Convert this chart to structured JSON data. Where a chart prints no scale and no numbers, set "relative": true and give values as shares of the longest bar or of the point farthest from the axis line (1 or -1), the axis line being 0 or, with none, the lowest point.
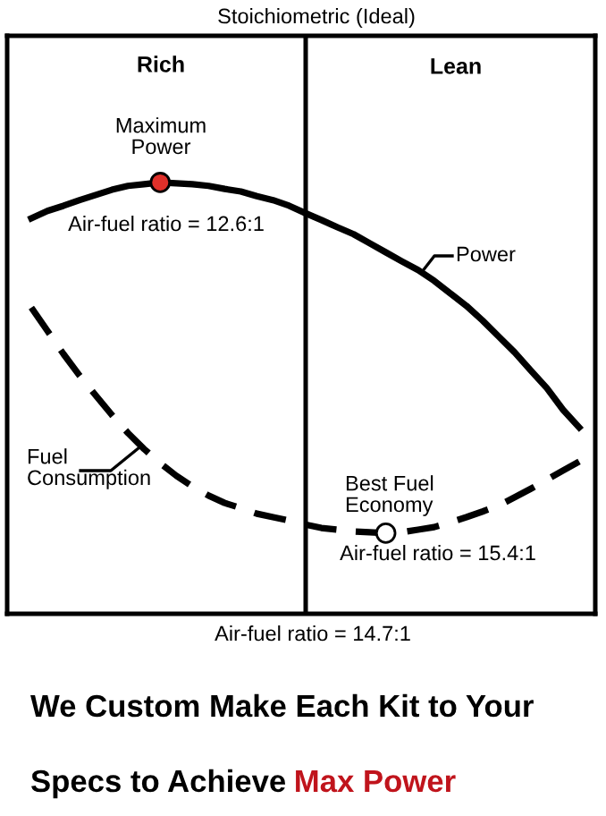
{
  "chart_data": {
    "type": "line",
    "relative": true,
    "categories": [
      null,
      null,
      null,
      null,
      null,
      null,
      null,
      null,
      null,
      null,
      null,
      null,
      null,
      null,
      null,
      null,
      null,
      null,
      null,
      null,
      null,
      null,
      null,
      null,
      null,
      null,
      null,
      null,
      null,
      null,
      null,
      null,
      null,
      null,
      null
    ],
    "series": [
      {
        "name": "Power",
        "color": "#000000",
        "line_style": "solid",
        "values": [
          0.917,
          0.934,
          0.946,
          0.959,
          0.971,
          0.983,
          0.992,
          0.996,
          1.0,
          0.998,
          0.996,
          0.992,
          0.985,
          0.979,
          0.968,
          0.959,
          0.946,
          0.929,
          0.913,
          0.896,
          0.88,
          0.859,
          0.838,
          0.817,
          0.797,
          0.772,
          0.743,
          0.714,
          0.68,
          0.643,
          0.606,
          0.564,
          0.523,
          0.473,
          0.432
        ]
      },
      {
        "name": "Fuel Consumption",
        "color": "#000000",
        "line_style": "dashed",
        "values": [
          0.71,
          0.656,
          0.602,
          0.552,
          0.506,
          0.461,
          0.419,
          0.382,
          0.349,
          0.32,
          0.295,
          0.274,
          0.257,
          0.245,
          0.232,
          0.224,
          0.216,
          0.207,
          0.199,
          0.195,
          0.191,
          0.189,
          0.187,
          0.189,
          0.195,
          0.201,
          0.212,
          0.224,
          0.237,
          0.251,
          0.27,
          0.29,
          0.311,
          0.332,
          0.353
        ]
      },
      {
        "type": "line",
        "marker": "circle",
        "color": "#e0302a",
        "values": [
          null,
          null,
          null,
          null,
          null,
          null,
          null,
          null,
          1.0,
          null,
          null,
          null,
          null,
          null,
          null,
          null,
          null,
          null,
          null,
          null,
          null,
          null,
          null,
          null,
          null,
          null,
          null,
          null,
          null,
          null,
          null,
          null,
          null,
          null,
          null
        ]
      },
      {
        "type": "line",
        "marker": "circle",
        "color": "#ffffff",
        "values": [
          null,
          null,
          null,
          null,
          null,
          null,
          null,
          null,
          null,
          null,
          null,
          null,
          null,
          null,
          null,
          null,
          null,
          null,
          null,
          null,
          null,
          null,
          0.187,
          null,
          null,
          null,
          null,
          null,
          null,
          null,
          null,
          null,
          null,
          null,
          null
        ]
      }
    ],
    "annotations": [
      "Stoichiometric (Ideal)",
      "Rich",
      "Lean",
      "Maximum\nPower",
      "Air-fuel ratio = 12.6:1",
      "Best Fuel\nEconomy",
      "Air-fuel ratio = 15.4:1",
      "Air-fuel ratio = 14.7:1",
      "We Custom Make Each Kit to Your",
      "Specs to Achieve",
      "Max Power"
    ]
  }
}
